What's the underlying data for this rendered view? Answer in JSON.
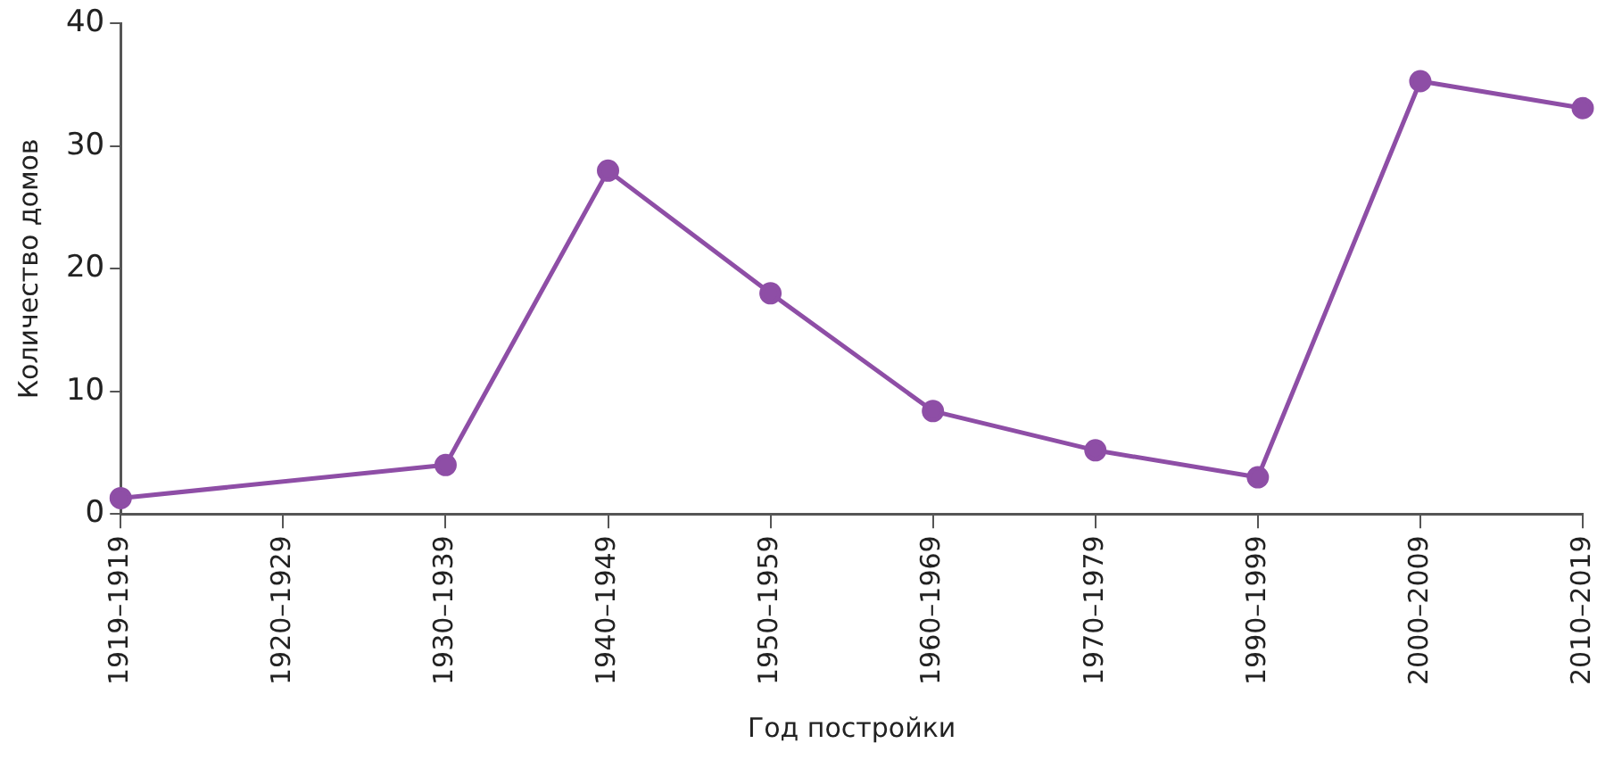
{
  "chart_data": {
    "type": "line",
    "xlabel": "Год постройки",
    "ylabel": "Количество домов",
    "categories": [
      "1919–1919",
      "1920–1929",
      "1930–1939",
      "1940–1949",
      "1950–1959",
      "1960–1969",
      "1970–1979",
      "1990–1999",
      "2000–2009",
      "2010–2019"
    ],
    "series": [
      {
        "color": "#8e4ea6",
        "values": [
          1.3,
          null,
          4,
          28,
          18,
          8.4,
          5.2,
          3,
          35.3,
          33.1
        ]
      }
    ],
    "ylim": [
      0,
      40
    ],
    "yticks": [
      0,
      10,
      20,
      30,
      40
    ],
    "grid": false,
    "legend": false,
    "marker": "circle",
    "line_style": "solid"
  }
}
